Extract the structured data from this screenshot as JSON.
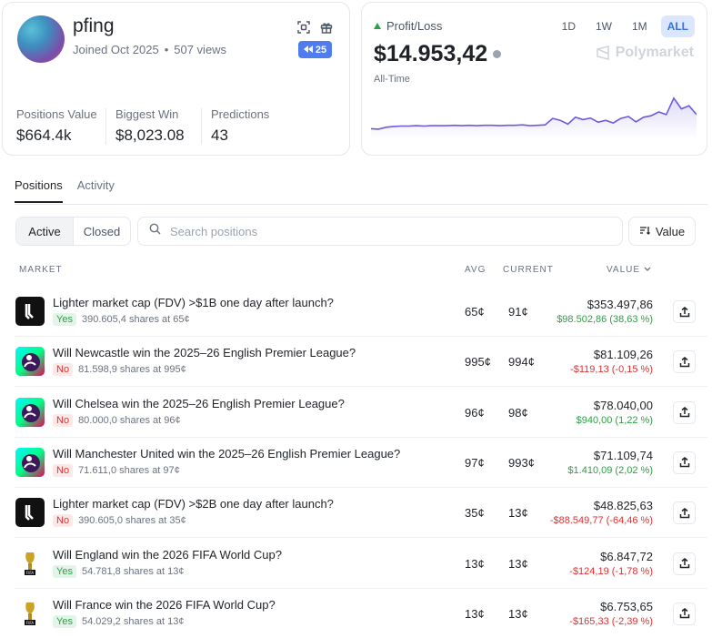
{
  "profile": {
    "username": "pfing",
    "joined": "Joined Oct 2025",
    "views": "507 views",
    "badge_count": "25",
    "stats": [
      {
        "label": "Positions Value",
        "value": "$664.4k"
      },
      {
        "label": "Biggest Win",
        "value": "$8,023.08"
      },
      {
        "label": "Predictions",
        "value": "43"
      }
    ]
  },
  "pnl": {
    "label": "Profit/Loss",
    "value": "$14.953,42",
    "period": "All-Time",
    "ranges": [
      "1D",
      "1W",
      "1M",
      "ALL"
    ],
    "active_range": "ALL",
    "brand": "Polymarket",
    "chart_series": [
      0.18,
      0.17,
      0.22,
      0.24,
      0.25,
      0.25,
      0.26,
      0.25,
      0.26,
      0.26,
      0.26,
      0.27,
      0.26,
      0.27,
      0.26,
      0.27,
      0.27,
      0.26,
      0.27,
      0.27,
      0.28,
      0.26,
      0.27,
      0.28,
      0.45,
      0.4,
      0.3,
      0.48,
      0.42,
      0.46,
      0.35,
      0.4,
      0.33,
      0.45,
      0.5,
      0.36,
      0.48,
      0.52,
      0.62,
      0.55,
      0.98,
      0.7,
      0.78,
      0.55
    ]
  },
  "tabs": [
    "Positions",
    "Activity"
  ],
  "filter": {
    "active": "Active",
    "closed": "Closed"
  },
  "search": {
    "placeholder": "Search positions"
  },
  "sort": {
    "label": "Value"
  },
  "table": {
    "headers": {
      "market": "MARKET",
      "avg": "AVG",
      "current": "CURRENT",
      "value": "VALUE"
    },
    "rows": [
      {
        "title": "Lighter market cap (FDV) >$1B one day after launch?",
        "outcome": "Yes",
        "shares": "390.605,4 shares at 65¢",
        "avg": "65¢",
        "current": "91¢",
        "value": "$353.497,86",
        "pnl": "$98.502,86 (38,63 %)",
        "icon": "lighter"
      },
      {
        "title": "Will Newcastle win the 2025–26 English Premier League?",
        "outcome": "No",
        "shares": "81.598,9 shares at 995¢",
        "avg": "995¢",
        "current": "994¢",
        "value": "$81.109,26",
        "pnl": "-$119,13 (-0,15 %)",
        "icon": "premier"
      },
      {
        "title": "Will Chelsea win the 2025–26 English Premier League?",
        "outcome": "No",
        "shares": "80.000,0 shares at 96¢",
        "avg": "96¢",
        "current": "98¢",
        "value": "$78.040,00",
        "pnl": "$940,00 (1,22 %)",
        "icon": "premier"
      },
      {
        "title": "Will Manchester United win the 2025–26 English Premier League?",
        "outcome": "No",
        "shares": "71.611,0 shares at 97¢",
        "avg": "97¢",
        "current": "993¢",
        "value": "$71.109,74",
        "pnl": "$1.410,09 (2,02 %)",
        "icon": "premier"
      },
      {
        "title": "Lighter market cap (FDV) >$2B one day after launch?",
        "outcome": "No",
        "shares": "390.605,0 shares at 35¢",
        "avg": "35¢",
        "current": "13¢",
        "value": "$48.825,63",
        "pnl": "-$88.549,77 (-64,46 %)",
        "icon": "lighter"
      },
      {
        "title": "Will England win the 2026 FIFA World Cup?",
        "outcome": "Yes",
        "shares": "54.781,8 shares at 13¢",
        "avg": "13¢",
        "current": "13¢",
        "value": "$6.847,72",
        "pnl": "-$124,19 (-1,78 %)",
        "icon": "fifa"
      },
      {
        "title": "Will France win the 2026 FIFA World Cup?",
        "outcome": "Yes",
        "shares": "54.029,2 shares at 13¢",
        "avg": "13¢",
        "current": "13¢",
        "value": "$6.753,65",
        "pnl": "-$165,33 (-2,39 %)",
        "icon": "fifa"
      }
    ]
  },
  "colors": {
    "accent": "#3b6fe0",
    "positive": "#2f9e44",
    "negative": "#e03131",
    "chart_line": "#6a5be0"
  }
}
